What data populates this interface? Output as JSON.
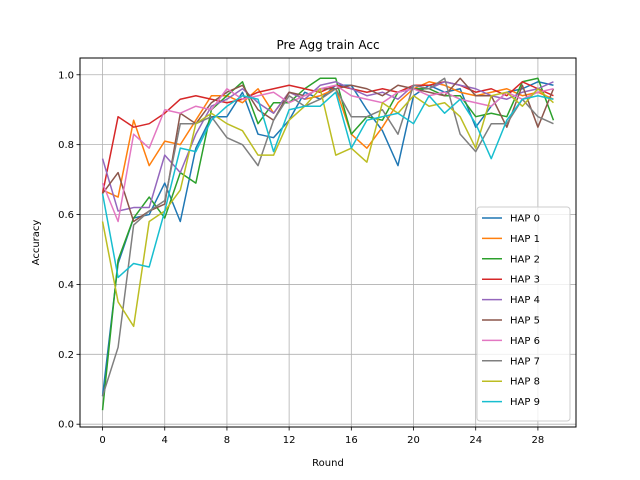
{
  "chart_data": {
    "type": "line",
    "title": "Pre Agg train Acc",
    "xlabel": "Round",
    "ylabel": "Accuracy",
    "xlim": [
      -1.45,
      30.45
    ],
    "ylim": [
      -0.008,
      1.048
    ],
    "xticks": [
      0,
      4,
      8,
      12,
      16,
      20,
      24,
      28
    ],
    "yticks": [
      0.0,
      0.2,
      0.4,
      0.6,
      0.8,
      1.0
    ],
    "xtick_labels": [
      "0",
      "4",
      "8",
      "12",
      "16",
      "20",
      "24",
      "28"
    ],
    "ytick_labels": [
      "0.0",
      "0.2",
      "0.4",
      "0.6",
      "0.8",
      "1.0"
    ],
    "grid": true,
    "legend": "center-right",
    "x": [
      0,
      1,
      2,
      3,
      4,
      5,
      6,
      7,
      8,
      9,
      10,
      11,
      12,
      13,
      14,
      15,
      16,
      17,
      18,
      19,
      20,
      21,
      22,
      23,
      24,
      25,
      26,
      27,
      28,
      29
    ],
    "series": [
      {
        "name": "HAP 0",
        "color": "#1f77b4",
        "values": [
          0.08,
          0.46,
          0.59,
          0.6,
          0.69,
          0.58,
          0.79,
          0.88,
          0.88,
          0.95,
          0.83,
          0.82,
          0.87,
          0.95,
          0.93,
          0.97,
          0.97,
          0.9,
          0.84,
          0.74,
          0.94,
          0.97,
          0.95,
          0.96,
          0.85,
          0.91,
          0.95,
          0.96,
          0.98,
          0.97
        ]
      },
      {
        "name": "HAP 1",
        "color": "#ff7f0e",
        "values": [
          0.67,
          0.65,
          0.87,
          0.74,
          0.81,
          0.8,
          0.87,
          0.94,
          0.94,
          0.92,
          0.96,
          0.89,
          0.95,
          0.93,
          0.94,
          0.96,
          0.83,
          0.79,
          0.85,
          0.92,
          0.96,
          0.98,
          0.97,
          0.95,
          0.94,
          0.95,
          0.96,
          0.94,
          0.95,
          0.93
        ]
      },
      {
        "name": "HAP 2",
        "color": "#2ca02c",
        "values": [
          0.04,
          0.47,
          0.59,
          0.65,
          0.59,
          0.72,
          0.69,
          0.9,
          0.94,
          0.98,
          0.86,
          0.92,
          0.92,
          0.96,
          0.99,
          0.99,
          0.83,
          0.88,
          0.87,
          0.95,
          0.96,
          0.96,
          0.94,
          0.94,
          0.88,
          0.89,
          0.88,
          0.98,
          0.99,
          0.87
        ]
      },
      {
        "name": "HAP 3",
        "color": "#d62728",
        "values": [
          0.66,
          0.88,
          0.85,
          0.86,
          0.89,
          0.93,
          0.94,
          0.93,
          0.92,
          0.93,
          0.95,
          0.96,
          0.97,
          0.96,
          0.95,
          0.97,
          0.96,
          0.95,
          0.96,
          0.95,
          0.97,
          0.97,
          0.98,
          0.97,
          0.95,
          0.96,
          0.94,
          0.98,
          0.96,
          0.94
        ]
      },
      {
        "name": "HAP 4",
        "color": "#9467bd",
        "values": [
          0.76,
          0.61,
          0.62,
          0.62,
          0.77,
          0.72,
          0.83,
          0.91,
          0.93,
          0.96,
          0.92,
          0.89,
          0.95,
          0.93,
          0.97,
          0.98,
          0.96,
          0.94,
          0.95,
          0.93,
          0.97,
          0.96,
          0.98,
          0.97,
          0.96,
          0.94,
          0.93,
          0.95,
          0.96,
          0.98
        ]
      },
      {
        "name": "HAP 5",
        "color": "#8c564b",
        "values": [
          0.66,
          0.72,
          0.58,
          0.61,
          0.63,
          0.89,
          0.86,
          0.92,
          0.95,
          0.97,
          0.9,
          0.87,
          0.95,
          0.94,
          0.96,
          0.96,
          0.97,
          0.96,
          0.94,
          0.97,
          0.96,
          0.95,
          0.94,
          0.99,
          0.94,
          0.94,
          0.85,
          0.97,
          0.85,
          0.96
        ]
      },
      {
        "name": "HAP 6",
        "color": "#e377c2",
        "values": [
          0.69,
          0.58,
          0.83,
          0.79,
          0.9,
          0.89,
          0.91,
          0.9,
          0.96,
          0.93,
          0.94,
          0.95,
          0.92,
          0.94,
          0.96,
          0.97,
          0.94,
          0.93,
          0.92,
          0.95,
          0.96,
          0.94,
          0.95,
          0.93,
          0.92,
          0.91,
          0.95,
          0.93,
          0.95,
          0.96
        ]
      },
      {
        "name": "HAP 7",
        "color": "#7f7f7f",
        "values": [
          0.08,
          0.22,
          0.57,
          0.61,
          0.64,
          0.86,
          0.86,
          0.88,
          0.82,
          0.8,
          0.74,
          0.87,
          0.94,
          0.91,
          0.93,
          0.96,
          0.88,
          0.88,
          0.9,
          0.83,
          0.97,
          0.96,
          0.99,
          0.83,
          0.78,
          0.86,
          0.86,
          0.93,
          0.88,
          0.86
        ]
      },
      {
        "name": "HAP 8",
        "color": "#bcbd22",
        "values": [
          0.58,
          0.35,
          0.28,
          0.58,
          0.61,
          0.67,
          0.86,
          0.89,
          0.86,
          0.84,
          0.77,
          0.77,
          0.87,
          0.91,
          0.96,
          0.77,
          0.79,
          0.75,
          0.92,
          0.89,
          0.94,
          0.91,
          0.92,
          0.88,
          0.79,
          0.94,
          0.95,
          0.91,
          0.96,
          0.92
        ]
      },
      {
        "name": "HAP 9",
        "color": "#17becf",
        "values": [
          0.66,
          0.42,
          0.46,
          0.45,
          0.61,
          0.79,
          0.78,
          0.87,
          0.91,
          0.94,
          0.93,
          0.78,
          0.9,
          0.91,
          0.91,
          0.95,
          0.79,
          0.87,
          0.88,
          0.89,
          0.86,
          0.94,
          0.89,
          0.93,
          0.86,
          0.76,
          0.87,
          0.93,
          0.94,
          0.93
        ]
      }
    ]
  }
}
